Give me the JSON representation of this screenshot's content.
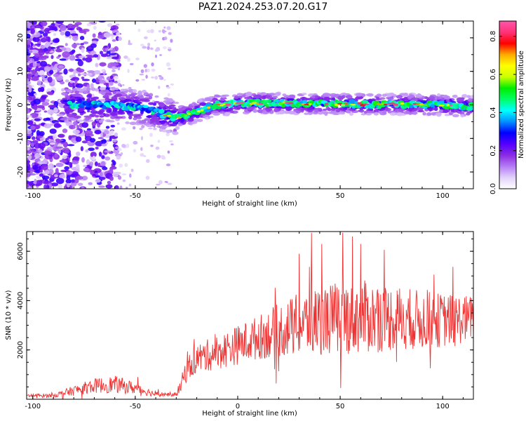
{
  "title": "PAZ1.2024.253.07.20.G17",
  "colorbar": {
    "label": "Normalized spectral amplitude",
    "ticks": [
      "0.0",
      "0.2",
      "0.4",
      "0.6",
      "0.8"
    ],
    "range": [
      0,
      0.88
    ],
    "colormap": [
      "#ffffff",
      "#e2d2fb",
      "#b57cf5",
      "#8a2be2",
      "#5500ff",
      "#0000ff",
      "#0090ff",
      "#00ffff",
      "#00ff66",
      "#00ee00",
      "#ccff00",
      "#ffff00",
      "#ffaa00",
      "#ff0000",
      "#ff3377",
      "#ff55aa"
    ]
  },
  "chart_data": [
    {
      "type": "heatmap",
      "xlabel": "Height of straight line (km)",
      "ylabel": "Frequency (Hz)",
      "xlim": [
        -103,
        115
      ],
      "ylim": [
        -25,
        25
      ],
      "xticks": [
        -100,
        -50,
        0,
        50,
        100
      ],
      "yticks": [
        -20,
        -10,
        0,
        10,
        20
      ],
      "ridge": {
        "description_points_x": [
          -80,
          -60,
          -45,
          -40,
          -35,
          -30,
          -25,
          -20,
          -15,
          -10,
          -5,
          0,
          10,
          20,
          40,
          60,
          80,
          100,
          115
        ],
        "description_points_y": [
          0,
          0,
          -1,
          -2,
          -3,
          -4,
          -3,
          -2,
          -1,
          0,
          0,
          0.5,
          0.5,
          0.5,
          0.3,
          0.2,
          0.2,
          0,
          -0.5
        ]
      }
    },
    {
      "type": "line",
      "xlabel": "Height of straight line (km)",
      "ylabel": "SNR (10 * v/v)",
      "xlim": [
        -103,
        115
      ],
      "ylim": [
        0,
        6800
      ],
      "xticks": [
        -100,
        -50,
        0,
        50,
        100
      ],
      "yticks": [
        2000,
        4000,
        6000
      ],
      "series": [
        {
          "color": "#ee3333",
          "envelope_x": [
            -103,
            -90,
            -80,
            -70,
            -60,
            -50,
            -40,
            -30,
            -28,
            -25,
            -20,
            -10,
            0,
            10,
            20,
            30,
            40,
            50,
            60,
            70,
            80,
            90,
            100,
            110,
            115
          ],
          "envelope_mean": [
            150,
            150,
            350,
            550,
            600,
            450,
            200,
            200,
            500,
            1200,
            1650,
            1900,
            2200,
            2500,
            2800,
            3000,
            3200,
            3300,
            3350,
            3300,
            3300,
            3200,
            3200,
            3250,
            3300
          ],
          "envelope_spread": [
            80,
            80,
            200,
            300,
            350,
            250,
            100,
            80,
            300,
            500,
            600,
            700,
            800,
            900,
            1100,
            1300,
            1400,
            1500,
            1500,
            1400,
            1300,
            1200,
            1100,
            1000,
            900
          ],
          "peaks": [
            [
              36,
              6750
            ],
            [
              41,
              6300
            ],
            [
              56,
              6600
            ],
            [
              60,
              6300
            ],
            [
              30,
              5900
            ]
          ]
        }
      ]
    }
  ]
}
